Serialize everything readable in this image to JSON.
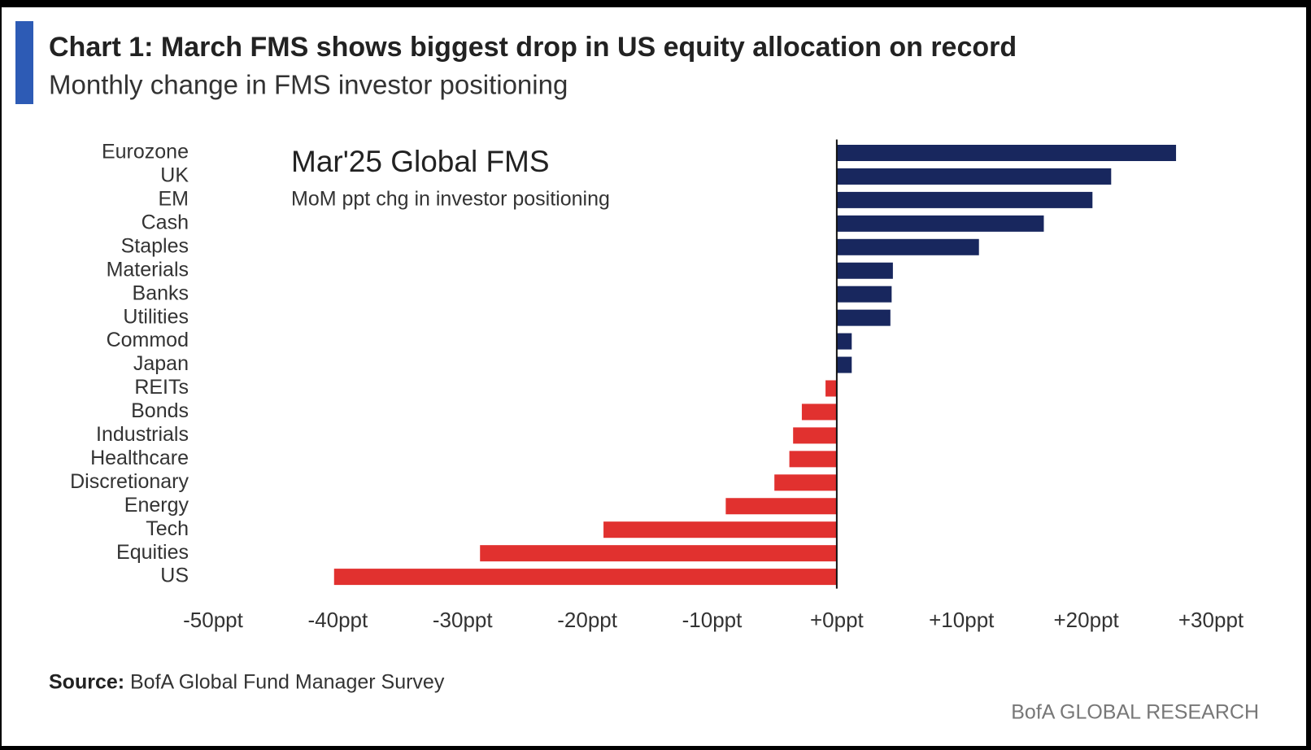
{
  "chart_data": {
    "type": "hbar",
    "title": "Chart 1: March FMS shows biggest drop in US equity allocation on record",
    "subtitle": "Monthly change in FMS investor positioning",
    "inset_title": "Mar'25 Global FMS",
    "inset_subtitle": "MoM ppt chg in investor positioning",
    "source_label": "Source:",
    "source": "BofA Global Fund Manager Survey",
    "branding": "BofA GLOBAL RESEARCH",
    "categories": [
      "Eurozone",
      "UK",
      "EM",
      "Cash",
      "Staples",
      "Materials",
      "Banks",
      "Utilities",
      "Commod",
      "Japan",
      "REITs",
      "Bonds",
      "Industrials",
      "Healthcare",
      "Discretionary",
      "Energy",
      "Tech",
      "Equities",
      "US"
    ],
    "values": [
      27.2,
      22,
      20.5,
      16.6,
      11.4,
      4.5,
      4.4,
      4.3,
      1.2,
      1.2,
      -0.9,
      -2.8,
      -3.5,
      -3.8,
      -5,
      -8.9,
      -18.7,
      -28.6,
      -40.3
    ],
    "positive_color": "#18275e",
    "negative_color": "#e1312f",
    "xlim": [
      -50,
      30
    ],
    "xticks": [
      {
        "value": -50,
        "label": "-50ppt"
      },
      {
        "value": -40,
        "label": "-40ppt"
      },
      {
        "value": -30,
        "label": "-30ppt"
      },
      {
        "value": -20,
        "label": "-20ppt"
      },
      {
        "value": -10,
        "label": "-10ppt"
      },
      {
        "value": 0,
        "label": "+0ppt"
      },
      {
        "value": 10,
        "label": "+10ppt"
      },
      {
        "value": 20,
        "label": "+20ppt"
      },
      {
        "value": 30,
        "label": "+30ppt"
      }
    ],
    "grid": false
  }
}
